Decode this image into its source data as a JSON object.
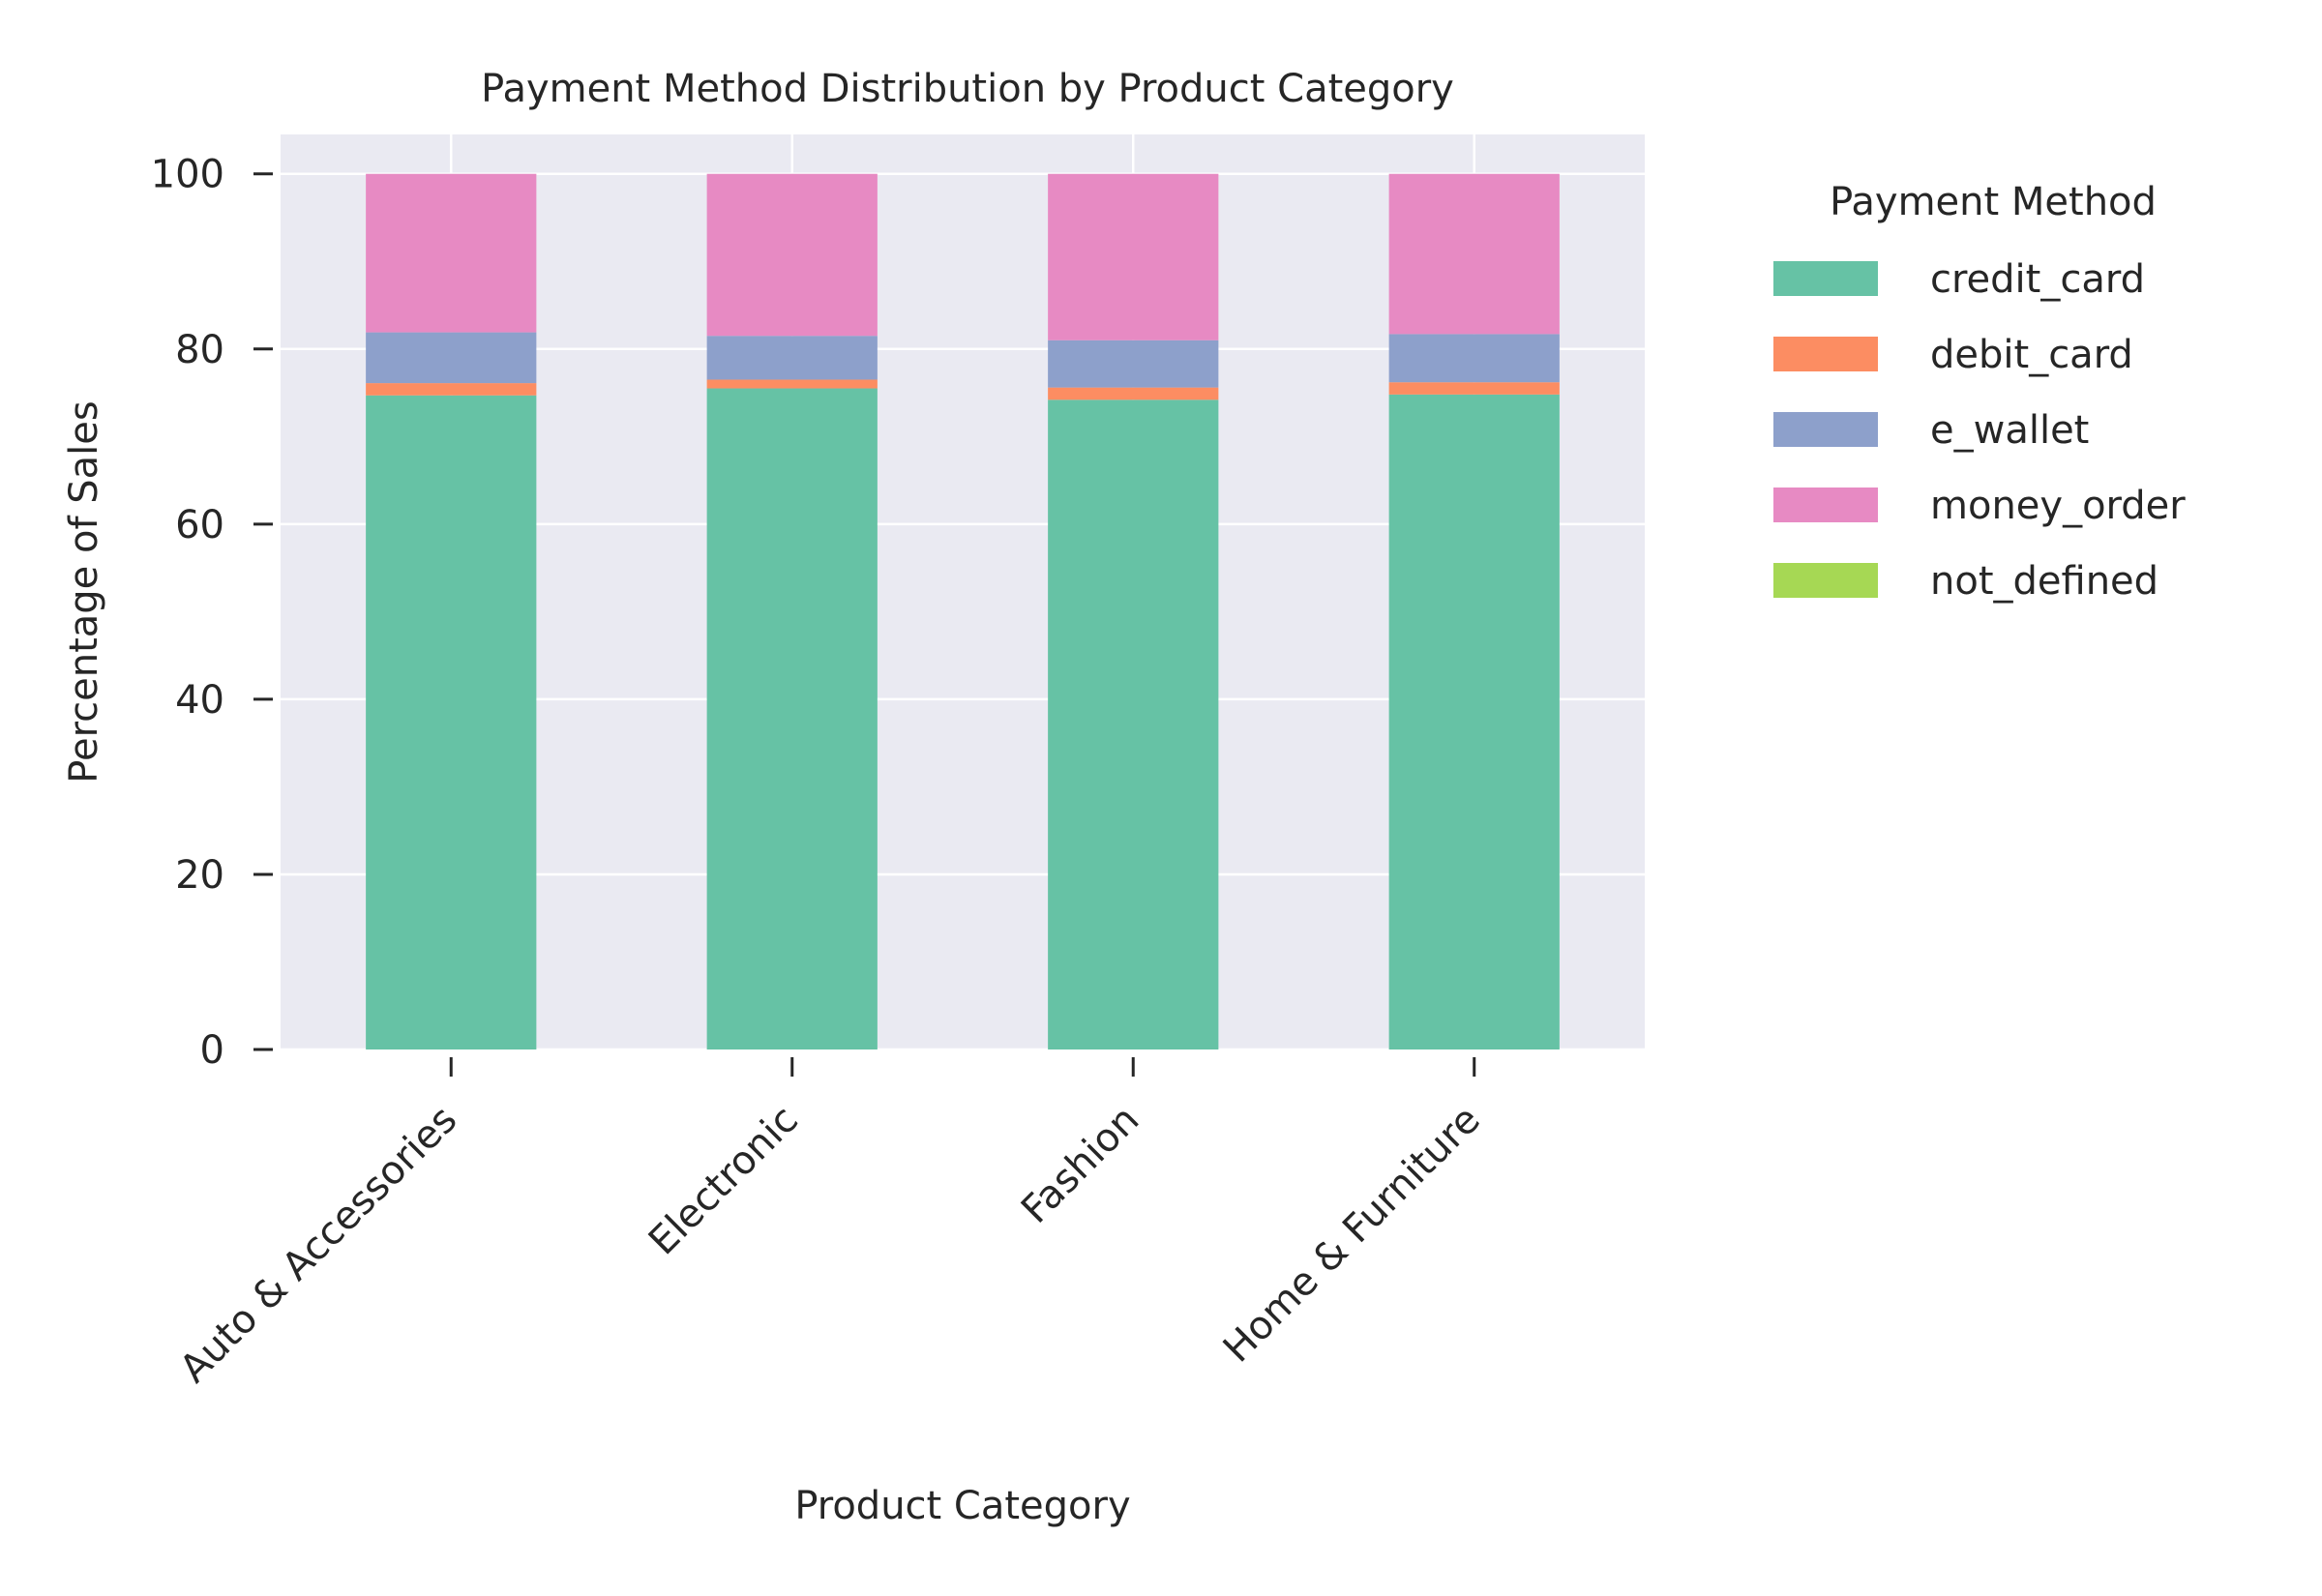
{
  "chart_data": {
    "type": "bar",
    "stacked": true,
    "title": "Payment Method Distribution by Product Category",
    "xlabel": "Product Category",
    "ylabel": "Percentage of Sales",
    "ylim": [
      0,
      104.5
    ],
    "yticks": [
      0,
      20,
      40,
      60,
      80,
      100
    ],
    "grid": true,
    "legend_title": "Payment Method",
    "legend_placement": "outside-upper-right",
    "categories": [
      "Auto & Accessories",
      "Electronic",
      "Fashion",
      "Home & Furniture"
    ],
    "series": [
      {
        "name": "credit_card",
        "color": "#66c2a5",
        "values": [
          74.7,
          75.5,
          74.2,
          74.8
        ]
      },
      {
        "name": "debit_card",
        "color": "#fc8d62",
        "values": [
          1.4,
          1.0,
          1.4,
          1.4
        ]
      },
      {
        "name": "e_wallet",
        "color": "#8da0cb",
        "values": [
          5.8,
          5.0,
          5.4,
          5.5
        ]
      },
      {
        "name": "money_order",
        "color": "#e78ac3",
        "values": [
          18.1,
          18.5,
          19.0,
          18.3
        ]
      },
      {
        "name": "not_defined",
        "color": "#a6d854",
        "values": [
          0.0,
          0.0,
          0.0,
          0.0
        ]
      }
    ]
  }
}
